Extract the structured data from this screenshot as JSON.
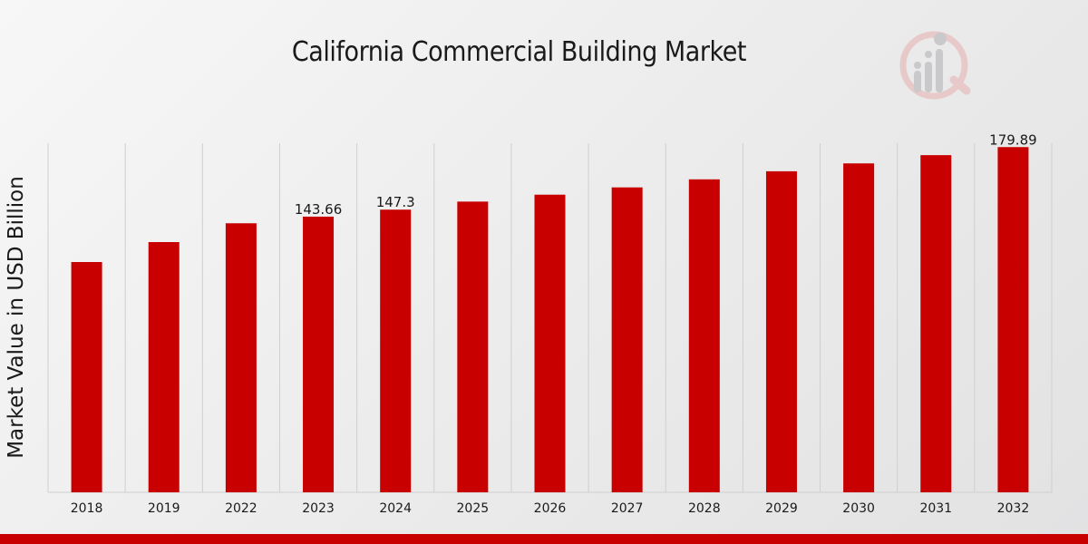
{
  "chart_data": {
    "type": "bar",
    "title": "California Commercial Building Market",
    "xlabel": "",
    "ylabel": "Market Value in USD Billion",
    "categories": [
      "2018",
      "2019",
      "2022",
      "2023",
      "2024",
      "2025",
      "2026",
      "2027",
      "2028",
      "2029",
      "2030",
      "2031",
      "2032"
    ],
    "values": [
      120.0,
      130.4,
      140.2,
      143.66,
      147.3,
      151.5,
      155.1,
      158.9,
      163.1,
      167.3,
      171.4,
      175.7,
      179.89
    ],
    "data_labels": {
      "2023": "143.66",
      "2024": "147.3",
      "2032": "179.89"
    },
    "ylim": [
      0,
      181.9
    ],
    "bar_color": "#c80000",
    "grid": "vertical"
  }
}
